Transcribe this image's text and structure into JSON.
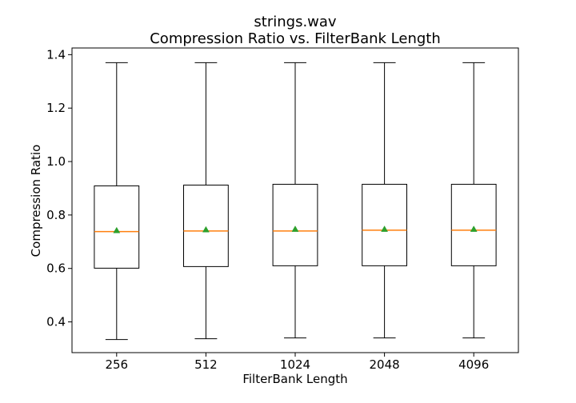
{
  "chart_data": {
    "type": "box",
    "title": "strings.wav",
    "subtitle": "Compression Ratio vs. FilterBank Length",
    "xlabel": "FilterBank Length",
    "ylabel": "Compression Ratio",
    "ylim": [
      0.285,
      1.425
    ],
    "yticks": [
      0.4,
      0.6,
      0.8,
      1.0,
      1.2,
      1.4
    ],
    "ytick_labels": [
      "0.4",
      "0.6",
      "0.8",
      "1.0",
      "1.2",
      "1.4"
    ],
    "categories": [
      "256",
      "512",
      "1024",
      "2048",
      "4096"
    ],
    "boxes": [
      {
        "whisker_low": 0.334,
        "q1": 0.601,
        "median": 0.738,
        "q3": 0.909,
        "whisker_high": 1.37,
        "mean": 0.742
      },
      {
        "whisker_low": 0.337,
        "q1": 0.607,
        "median": 0.74,
        "q3": 0.912,
        "whisker_high": 1.37,
        "mean": 0.745
      },
      {
        "whisker_low": 0.34,
        "q1": 0.61,
        "median": 0.74,
        "q3": 0.915,
        "whisker_high": 1.37,
        "mean": 0.747
      },
      {
        "whisker_low": 0.34,
        "q1": 0.61,
        "median": 0.743,
        "q3": 0.915,
        "whisker_high": 1.37,
        "mean": 0.747
      },
      {
        "whisker_low": 0.34,
        "q1": 0.61,
        "median": 0.743,
        "q3": 0.915,
        "whisker_high": 1.37,
        "mean": 0.747
      }
    ],
    "grid": false,
    "colors": {
      "box": "#000000",
      "median": "#ff7f0e",
      "mean": "#2ca02c"
    }
  }
}
